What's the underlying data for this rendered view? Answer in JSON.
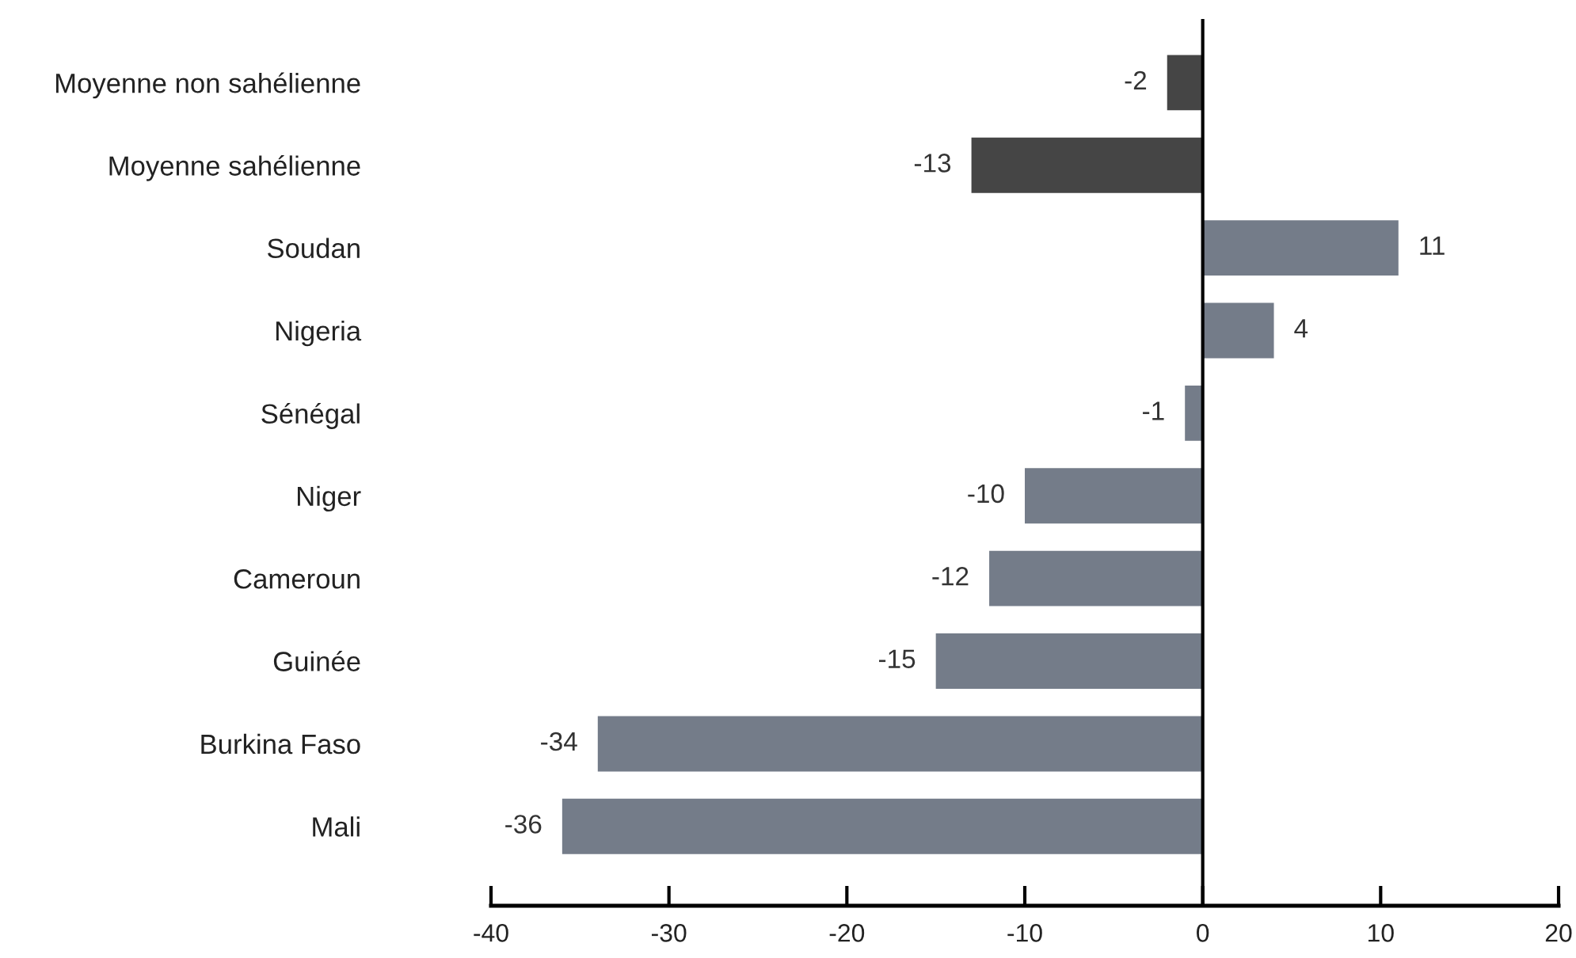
{
  "chart_data": {
    "type": "bar",
    "orientation": "horizontal",
    "categories": [
      "Moyenne non sahélienne",
      "Moyenne sahélienne",
      "Soudan",
      "Nigeria",
      "Sénégal",
      "Niger",
      "Cameroun",
      "Guinée",
      "Burkina Faso",
      "Mali"
    ],
    "values": [
      -2,
      -13,
      11,
      4,
      -1,
      -10,
      -12,
      -15,
      -34,
      -36
    ],
    "colors": [
      "#454545",
      "#454545",
      "#747c89",
      "#747c89",
      "#747c89",
      "#747c89",
      "#747c89",
      "#747c89",
      "#747c89",
      "#747c89"
    ],
    "xlim": [
      -40,
      20
    ],
    "xticks": [
      -40,
      -30,
      -20,
      -10,
      0,
      10,
      20
    ],
    "data_labels": true,
    "grid": false,
    "legend": false,
    "ref_lines": [
      {
        "axis": "x",
        "value": 0,
        "color": "#000000"
      }
    ]
  }
}
